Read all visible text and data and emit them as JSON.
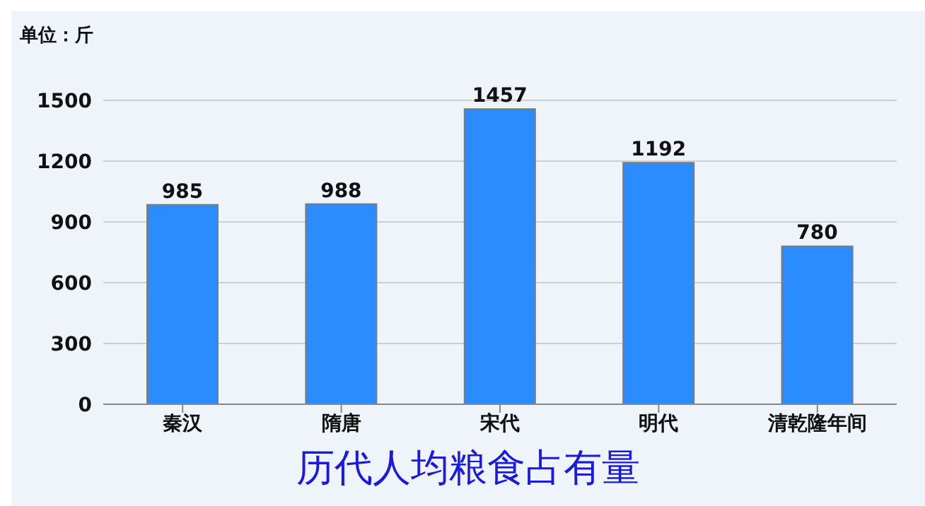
{
  "chart_data": {
    "type": "bar",
    "title": "历代人均粮食占有量",
    "ylabel": "单位：斤",
    "categories": [
      "秦汉",
      "隋唐",
      "宋代",
      "明代",
      "清乾隆年间"
    ],
    "values": [
      985,
      988,
      1457,
      1192,
      780
    ],
    "color": "#2b8cff",
    "ylim": [
      0,
      1500
    ],
    "yticks": [
      0,
      300,
      600,
      900,
      1200,
      1500
    ],
    "grid": "y",
    "data_labels": true
  }
}
